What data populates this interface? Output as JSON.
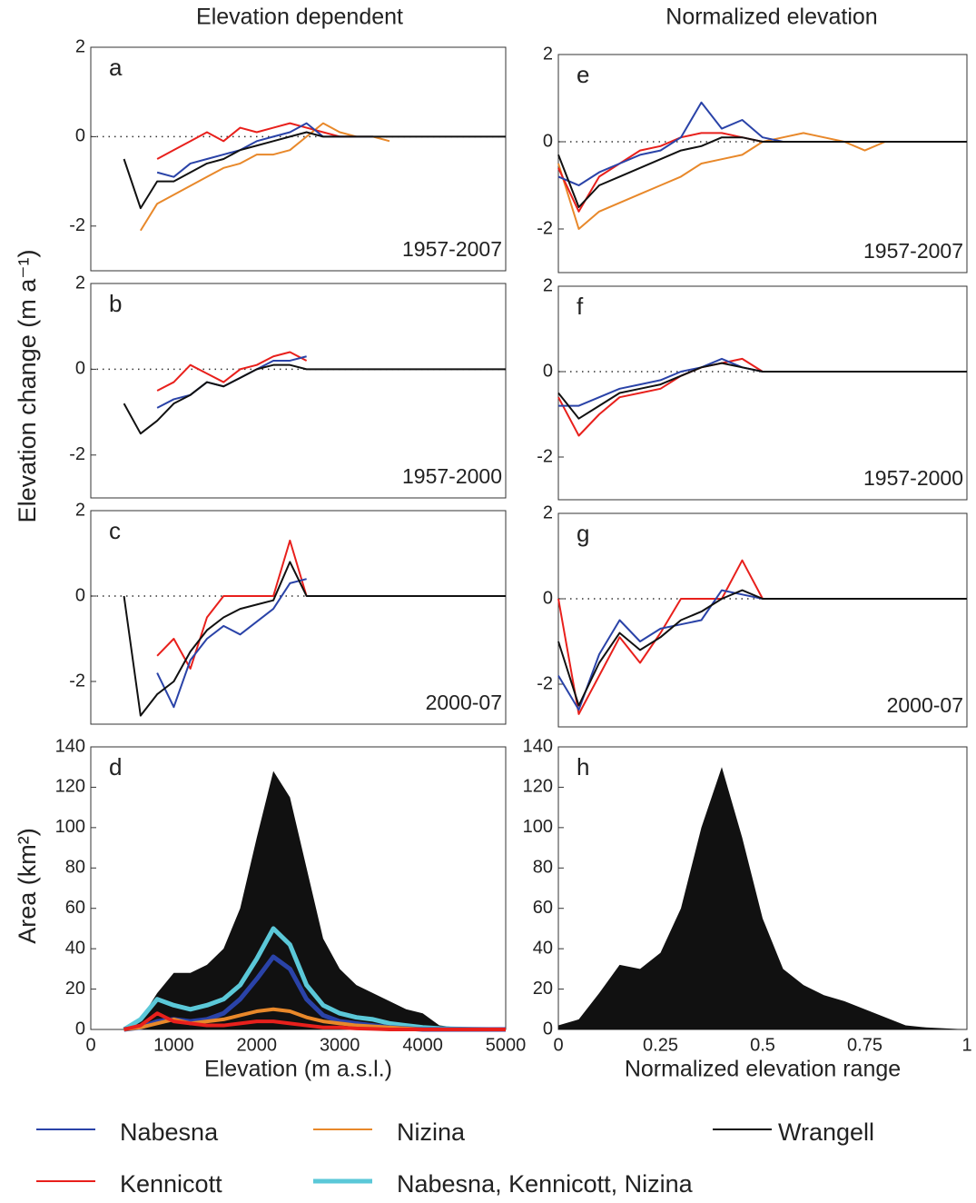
{
  "column_titles": [
    "Elevation dependent",
    "Normalized elevation"
  ],
  "y_labels": [
    "Elevation change (m a⁻¹)",
    "Area (km²)"
  ],
  "legend": [
    {
      "name": "Nabesna",
      "color": "#2a43a8",
      "line_width": 2
    },
    {
      "name": "Nizina",
      "color": "#e8882a",
      "line_width": 2
    },
    {
      "name": "Wrangell",
      "color": "#111111",
      "line_width": 2
    },
    {
      "name": "Kennicott",
      "color": "#e8201c",
      "line_width": 2
    },
    {
      "name": "Nabesna, Kennicott, Nizina",
      "color": "#5bc8d8",
      "line_width": 5
    }
  ],
  "chart_data": [
    {
      "type": "line",
      "label": "a",
      "period": "1957-2007",
      "zero_line": true,
      "xlim": [
        0,
        5000
      ],
      "ylim": [
        -3,
        2
      ],
      "yticks": [
        -2,
        0,
        2
      ],
      "x": [
        400,
        600,
        800,
        1000,
        1200,
        1400,
        1600,
        1800,
        2000,
        2200,
        2400,
        2600,
        2800,
        3000,
        3200,
        3400,
        3600,
        5000
      ],
      "series": [
        {
          "name": "Nizina",
          "color": "#e8882a",
          "values": [
            null,
            -2.1,
            -1.5,
            -1.3,
            -1.1,
            -0.9,
            -0.7,
            -0.6,
            -0.4,
            -0.4,
            -0.3,
            0,
            0.3,
            0.1,
            0,
            0,
            -0.1,
            null
          ]
        },
        {
          "name": "Kennicott",
          "color": "#e8201c",
          "values": [
            null,
            null,
            -0.5,
            -0.3,
            -0.1,
            0.1,
            -0.1,
            0.2,
            0.1,
            0.2,
            0.3,
            0.2,
            0.1,
            0,
            0,
            null,
            null,
            null
          ]
        },
        {
          "name": "Nabesna",
          "color": "#2a43a8",
          "values": [
            null,
            null,
            -0.8,
            -0.9,
            -0.6,
            -0.5,
            -0.4,
            -0.3,
            -0.1,
            0,
            0.1,
            0.3,
            0,
            0,
            0,
            0,
            null,
            null
          ]
        },
        {
          "name": "Wrangell",
          "color": "#111111",
          "values": [
            -0.5,
            -1.6,
            -1.0,
            -1.0,
            -0.8,
            -0.6,
            -0.5,
            -0.3,
            -0.2,
            -0.1,
            0,
            0.1,
            0,
            0,
            0,
            0,
            0,
            0
          ]
        }
      ]
    },
    {
      "type": "line",
      "label": "b",
      "period": "1957-2000",
      "zero_line": true,
      "xlim": [
        0,
        5000
      ],
      "ylim": [
        -3,
        2
      ],
      "yticks": [
        -2,
        0,
        2
      ],
      "x": [
        400,
        600,
        800,
        1000,
        1200,
        1400,
        1600,
        1800,
        2000,
        2200,
        2400,
        2600,
        2800,
        3000,
        3200,
        3400,
        3600,
        5000
      ],
      "series": [
        {
          "name": "Kennicott",
          "color": "#e8201c",
          "values": [
            null,
            null,
            -0.5,
            -0.3,
            0.1,
            -0.1,
            -0.3,
            0,
            0.1,
            0.3,
            0.4,
            0.2,
            null,
            null,
            null,
            null,
            null,
            null
          ]
        },
        {
          "name": "Nabesna",
          "color": "#2a43a8",
          "values": [
            null,
            null,
            -0.9,
            -0.7,
            -0.6,
            -0.3,
            -0.4,
            -0.2,
            0,
            0.2,
            0.2,
            0.3,
            null,
            null,
            null,
            null,
            null,
            null
          ]
        },
        {
          "name": "Wrangell",
          "color": "#111111",
          "values": [
            -0.8,
            -1.5,
            -1.2,
            -0.8,
            -0.6,
            -0.3,
            -0.4,
            -0.2,
            0,
            0.1,
            0.1,
            0,
            0,
            0,
            0,
            0,
            0,
            0
          ]
        }
      ]
    },
    {
      "type": "line",
      "label": "c",
      "period": "2000-07",
      "zero_line": true,
      "xlim": [
        0,
        5000
      ],
      "ylim": [
        -3,
        2
      ],
      "yticks": [
        -2,
        0,
        2
      ],
      "x": [
        400,
        600,
        800,
        1000,
        1200,
        1400,
        1600,
        1800,
        2000,
        2200,
        2400,
        2600,
        2800,
        3000,
        3200,
        3400,
        3600,
        5000
      ],
      "series": [
        {
          "name": "Kennicott",
          "color": "#e8201c",
          "values": [
            null,
            null,
            -1.4,
            -1.0,
            -1.7,
            -0.5,
            0,
            0,
            0,
            0,
            1.3,
            0,
            null,
            null,
            null,
            null,
            null,
            null
          ]
        },
        {
          "name": "Nabesna",
          "color": "#2a43a8",
          "values": [
            null,
            null,
            -1.8,
            -2.6,
            -1.5,
            -1.0,
            -0.7,
            -0.9,
            -0.6,
            -0.3,
            0.3,
            0.4,
            null,
            null,
            null,
            null,
            null,
            null
          ]
        },
        {
          "name": "Wrangell",
          "color": "#111111",
          "values": [
            0,
            -2.8,
            -2.3,
            -2.0,
            -1.3,
            -0.8,
            -0.5,
            -0.3,
            -0.2,
            -0.1,
            0.8,
            0,
            0,
            0,
            0,
            0,
            0,
            0
          ]
        }
      ]
    },
    {
      "type": "area",
      "label": "d",
      "x_label": "Elevation (m a.s.l.)",
      "xlim": [
        0,
        5000
      ],
      "ylim": [
        0,
        140
      ],
      "xticks": [
        0,
        1000,
        2000,
        3000,
        4000,
        5000
      ],
      "yticks": [
        0,
        20,
        40,
        60,
        80,
        100,
        120,
        140
      ],
      "x": [
        400,
        600,
        800,
        1000,
        1200,
        1400,
        1600,
        1800,
        2000,
        2200,
        2400,
        2600,
        2800,
        3000,
        3200,
        3400,
        3600,
        3800,
        4000,
        4200,
        4400,
        4600,
        4800,
        5000
      ],
      "series": [
        {
          "name": "Wrangell",
          "color": "#111111",
          "fill": true,
          "values": [
            0,
            5,
            18,
            28,
            28,
            32,
            40,
            60,
            95,
            128,
            115,
            80,
            45,
            30,
            22,
            18,
            14,
            10,
            8,
            2,
            1,
            0.5,
            0.2,
            0
          ]
        },
        {
          "name": "Nabesna, Kennicott, Nizina",
          "color": "#5bc8d8",
          "line_width": 5,
          "values": [
            0,
            5,
            15,
            12,
            10,
            12,
            15,
            22,
            35,
            50,
            42,
            22,
            12,
            8,
            6,
            5,
            3,
            2,
            1,
            0.5,
            0.3,
            0.1,
            0,
            0
          ]
        },
        {
          "name": "Nabesna",
          "color": "#2a43a8",
          "line_width": 5,
          "values": [
            0,
            1,
            4,
            5,
            4,
            5,
            8,
            15,
            25,
            36,
            30,
            15,
            7,
            4,
            3,
            2,
            1,
            0.5,
            0,
            0,
            0,
            0,
            0,
            0
          ]
        },
        {
          "name": "Nizina",
          "color": "#e8882a",
          "line_width": 4,
          "values": [
            0,
            1,
            3,
            5,
            3,
            4,
            5,
            7,
            9,
            10,
            9,
            6,
            4,
            3,
            2,
            1.5,
            1,
            0.5,
            0,
            0,
            0,
            0,
            0,
            0
          ]
        },
        {
          "name": "Kennicott",
          "color": "#e8201c",
          "line_width": 4,
          "values": [
            0,
            2,
            8,
            4,
            3,
            2,
            2,
            3,
            4,
            4,
            3,
            2,
            1,
            1,
            0.5,
            0.3,
            0,
            0,
            0,
            0,
            0,
            0,
            0,
            0
          ]
        }
      ]
    },
    {
      "type": "line",
      "label": "e",
      "period": "1957-2007",
      "zero_line": true,
      "xlim": [
        0,
        1
      ],
      "ylim": [
        -3,
        2
      ],
      "yticks": [
        -2,
        0,
        2
      ],
      "x": [
        0,
        0.05,
        0.1,
        0.15,
        0.2,
        0.25,
        0.3,
        0.35,
        0.4,
        0.45,
        0.5,
        0.55,
        0.6,
        0.65,
        0.7,
        0.75,
        0.8,
        0.85,
        0.9,
        0.95,
        1
      ],
      "series": [
        {
          "name": "Nizina",
          "color": "#e8882a",
          "values": [
            -0.5,
            -2.0,
            -1.6,
            -1.4,
            -1.2,
            -1.0,
            -0.8,
            -0.5,
            -0.4,
            -0.3,
            0,
            0.1,
            0.2,
            0.1,
            0,
            -0.2,
            0,
            null,
            null,
            null,
            null
          ]
        },
        {
          "name": "Kennicott",
          "color": "#e8201c",
          "values": [
            -0.6,
            -1.6,
            -0.8,
            -0.5,
            -0.2,
            -0.1,
            0.1,
            0.2,
            0.2,
            0.1,
            0,
            0,
            null,
            null,
            null,
            null,
            null,
            null,
            null,
            null,
            null
          ]
        },
        {
          "name": "Nabesna",
          "color": "#2a43a8",
          "values": [
            -0.8,
            -1.0,
            -0.7,
            -0.5,
            -0.3,
            -0.2,
            0.1,
            0.9,
            0.3,
            0.5,
            0.1,
            0,
            0,
            null,
            null,
            null,
            null,
            null,
            null,
            null,
            null
          ]
        },
        {
          "name": "Wrangell",
          "color": "#111111",
          "values": [
            -0.3,
            -1.5,
            -1.0,
            -0.8,
            -0.6,
            -0.4,
            -0.2,
            -0.1,
            0.1,
            0.1,
            0,
            0,
            0,
            0,
            0,
            0,
            0,
            0,
            0,
            0,
            0
          ]
        }
      ]
    },
    {
      "type": "line",
      "label": "f",
      "period": "1957-2000",
      "zero_line": true,
      "xlim": [
        0,
        1
      ],
      "ylim": [
        -3,
        2
      ],
      "yticks": [
        -2,
        0,
        2
      ],
      "x": [
        0,
        0.05,
        0.1,
        0.15,
        0.2,
        0.25,
        0.3,
        0.35,
        0.4,
        0.45,
        0.5,
        0.55,
        0.6,
        0.65,
        0.7,
        0.75,
        0.8,
        0.85,
        0.9,
        0.95,
        1
      ],
      "series": [
        {
          "name": "Kennicott",
          "color": "#e8201c",
          "values": [
            -0.6,
            -1.5,
            -1.0,
            -0.6,
            -0.5,
            -0.4,
            -0.1,
            0.1,
            0.2,
            0.3,
            0,
            null,
            null,
            null,
            null,
            null,
            null,
            null,
            null,
            null,
            null
          ]
        },
        {
          "name": "Nabesna",
          "color": "#2a43a8",
          "values": [
            -0.8,
            -0.8,
            -0.6,
            -0.4,
            -0.3,
            -0.2,
            0,
            0.1,
            0.3,
            0.1,
            0,
            null,
            null,
            null,
            null,
            null,
            null,
            null,
            null,
            null,
            null
          ]
        },
        {
          "name": "Wrangell",
          "color": "#111111",
          "values": [
            -0.5,
            -1.1,
            -0.8,
            -0.5,
            -0.4,
            -0.3,
            -0.1,
            0.1,
            0.2,
            0.1,
            0,
            0,
            0,
            0,
            0,
            0,
            0,
            0,
            0,
            0,
            0
          ]
        }
      ]
    },
    {
      "type": "line",
      "label": "g",
      "period": "2000-07",
      "zero_line": true,
      "xlim": [
        0,
        1
      ],
      "ylim": [
        -3,
        2
      ],
      "yticks": [
        -2,
        0,
        2
      ],
      "x": [
        0,
        0.05,
        0.1,
        0.15,
        0.2,
        0.25,
        0.3,
        0.35,
        0.4,
        0.45,
        0.5,
        0.55,
        0.6,
        0.65,
        0.7,
        0.75,
        0.8,
        0.85,
        0.9,
        0.95,
        1
      ],
      "series": [
        {
          "name": "Kennicott",
          "color": "#e8201c",
          "values": [
            0,
            -2.7,
            -1.8,
            -0.9,
            -1.5,
            -0.8,
            0,
            0,
            0,
            0.9,
            0,
            null,
            null,
            null,
            null,
            null,
            null,
            null,
            null,
            null,
            null
          ]
        },
        {
          "name": "Nabesna",
          "color": "#2a43a8",
          "values": [
            -1.8,
            -2.6,
            -1.3,
            -0.5,
            -1.0,
            -0.7,
            -0.6,
            -0.5,
            0.2,
            0.1,
            0,
            null,
            null,
            null,
            null,
            null,
            null,
            null,
            null,
            null,
            null
          ]
        },
        {
          "name": "Wrangell",
          "color": "#111111",
          "values": [
            -1.0,
            -2.5,
            -1.5,
            -0.8,
            -1.2,
            -0.9,
            -0.5,
            -0.3,
            0,
            0.2,
            0,
            0,
            0,
            0,
            0,
            0,
            0,
            0,
            0,
            0,
            0
          ]
        }
      ]
    },
    {
      "type": "area",
      "label": "h",
      "x_label": "Normalized elevation range",
      "xlim": [
        0,
        1
      ],
      "ylim": [
        0,
        140
      ],
      "xticks": [
        0,
        0.25,
        0.5,
        0.75,
        1
      ],
      "yticks": [
        0,
        20,
        40,
        60,
        80,
        100,
        120,
        140
      ],
      "x": [
        0,
        0.05,
        0.1,
        0.15,
        0.2,
        0.25,
        0.3,
        0.35,
        0.4,
        0.45,
        0.5,
        0.55,
        0.6,
        0.65,
        0.7,
        0.75,
        0.8,
        0.85,
        0.9,
        0.95,
        1
      ],
      "series": [
        {
          "name": "Wrangell",
          "color": "#111111",
          "fill": true,
          "values": [
            2,
            5,
            18,
            32,
            30,
            38,
            60,
            100,
            130,
            95,
            55,
            30,
            22,
            17,
            14,
            10,
            6,
            2,
            1,
            0.5,
            0
          ]
        }
      ]
    }
  ]
}
